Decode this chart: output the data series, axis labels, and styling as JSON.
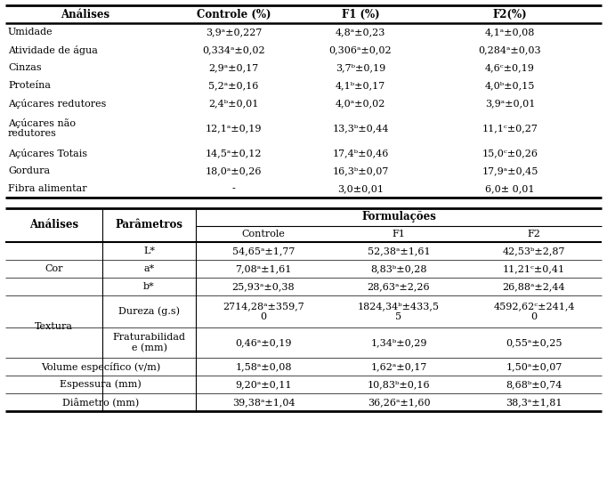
{
  "table1_headers": [
    "Análises",
    "Controle (%)",
    "F1 (%)",
    "F2(%)"
  ],
  "table1_rows": [
    [
      "Umidade",
      "3,9ᵃ±0,227",
      "4,8ᵃ±0,23",
      "4,1ᵃ±0,08"
    ],
    [
      "Atividade de água",
      "0,334ᵃ±0,02",
      "0,306ᵃ±0,02",
      "0,284ᵃ±0,03"
    ],
    [
      "Cinzas",
      "2,9ᵃ±0,17",
      "3,7ᵇ±0,19",
      "4,6ᶜ±0,19"
    ],
    [
      "Proteína",
      "5,2ᵃ±0,16",
      "4,1ᵇ±0,17",
      "4,0ᵇ±0,15"
    ],
    [
      "Açúcares redutores",
      "2,4ᵇ±0,01",
      "4,0ᵃ±0,02",
      "3,9ᵃ±0,01"
    ],
    [
      "Açúcares não\nredutores",
      "12,1ᵃ±0,19",
      "13,3ᵇ±0,44",
      "11,1ᶜ±0,27"
    ],
    [
      "Açúcares Totais",
      "14,5ᵃ±0,12",
      "17,4ᵇ±0,46",
      "15,0ᶜ±0,26"
    ],
    [
      "Gordura",
      "18,0ᵃ±0,26",
      "16,3ᵇ±0,07",
      "17,9ᵃ±0,45"
    ],
    [
      "Fibra alimentar",
      "-",
      "3,0±0,01",
      "6,0± 0,01"
    ]
  ],
  "table2_rows": [
    [
      "Cor",
      "L*",
      "54,65ᵃ±1,77",
      "52,38ᵃ±1,61",
      "42,53ᵇ±2,87"
    ],
    [
      "Cor",
      "a*",
      "7,08ᵃ±1,61",
      "8,83ᵇ±0,28",
      "11,21ᶜ±0,41"
    ],
    [
      "Cor",
      "b*",
      "25,93ᵃ±0,38",
      "28,63ᵃ±2,26",
      "26,88ᵃ±2,44"
    ],
    [
      "Textura",
      "Dureza (g.s)",
      "2714,28ᵃ±359,7\n0",
      "1824,34ᵇ±433,5\n5",
      "4592,62ᶜ±241,4\n0"
    ],
    [
      "Textura",
      "Fraturabilidad\ne (mm)",
      "0,46ᵃ±0,19",
      "1,34ᵇ±0,29",
      "0,55ᵃ±0,25"
    ],
    [
      "Volume específico (v/m)",
      "",
      "1,58ᵃ±0,08",
      "1,62ᵃ±0,17",
      "1,50ᵃ±0,07"
    ],
    [
      "Espessura (mm)",
      "",
      "9,20ᵃ±0,11",
      "10,83ᵇ±0,16",
      "8,68ᵇ±0,74"
    ],
    [
      "Diâmetro (mm)",
      "",
      "39,38ᵃ±1,04",
      "36,26ᵃ±1,60",
      "38,3ᵃ±1,81"
    ]
  ],
  "font_size": 8.0,
  "header_font_size": 8.5
}
